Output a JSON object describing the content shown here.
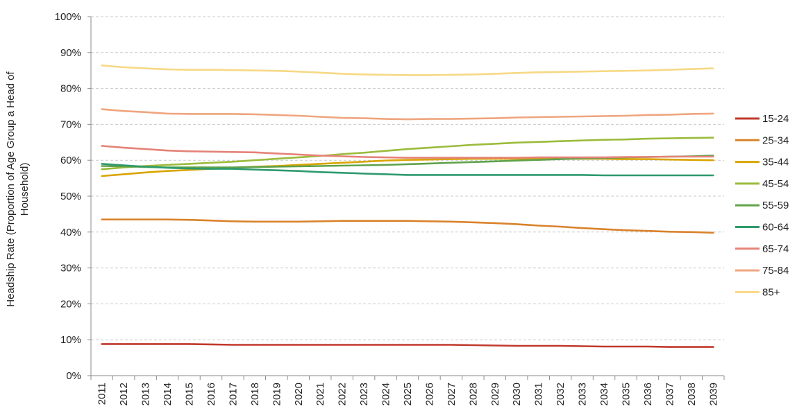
{
  "chart_data": {
    "type": "line",
    "ylabel": [
      "Headship Rate (Proportion of Age Group a Head of",
      "Household)"
    ],
    "ylim": [
      0,
      100
    ],
    "yticks": [
      "0%",
      "10%",
      "20%",
      "30%",
      "40%",
      "50%",
      "60%",
      "70%",
      "80%",
      "90%",
      "100%"
    ],
    "grid": true,
    "legend_position": "right",
    "x": [
      "2011",
      "2012",
      "2013",
      "2014",
      "2015",
      "2016",
      "2017",
      "2018",
      "2019",
      "2020",
      "2021",
      "2022",
      "2023",
      "2024",
      "2025",
      "2026",
      "2027",
      "2028",
      "2029",
      "2030",
      "2031",
      "2032",
      "2033",
      "2034",
      "2035",
      "2036",
      "2037",
      "2038",
      "2039"
    ],
    "series": [
      {
        "name": "15-24",
        "color": "#c0392b",
        "values": [
          8.8,
          8.8,
          8.8,
          8.8,
          8.8,
          8.7,
          8.6,
          8.6,
          8.6,
          8.6,
          8.6,
          8.6,
          8.6,
          8.6,
          8.6,
          8.6,
          8.6,
          8.5,
          8.4,
          8.3,
          8.3,
          8.3,
          8.2,
          8.1,
          8.1,
          8.1,
          8.0,
          8.0,
          8.0
        ]
      },
      {
        "name": "25-34",
        "color": "#d9822b",
        "values": [
          43.5,
          43.5,
          43.5,
          43.5,
          43.4,
          43.2,
          43.0,
          42.9,
          42.9,
          42.9,
          43.0,
          43.1,
          43.1,
          43.1,
          43.1,
          43.0,
          42.9,
          42.7,
          42.5,
          42.2,
          41.8,
          41.5,
          41.1,
          40.8,
          40.5,
          40.3,
          40.1,
          40.0,
          39.8
        ]
      },
      {
        "name": "35-44",
        "color": "#d9a400",
        "values": [
          55.6,
          56.1,
          56.6,
          57.0,
          57.3,
          57.6,
          57.9,
          58.2,
          58.4,
          58.7,
          59.0,
          59.3,
          59.6,
          59.9,
          60.1,
          60.2,
          60.3,
          60.4,
          60.4,
          60.4,
          60.4,
          60.4,
          60.4,
          60.4,
          60.3,
          60.3,
          60.2,
          60.1,
          60.0
        ]
      },
      {
        "name": "45-54",
        "color": "#9bbb3b",
        "values": [
          57.5,
          58.0,
          58.4,
          58.7,
          59.0,
          59.3,
          59.6,
          60.0,
          60.4,
          60.8,
          61.2,
          61.7,
          62.1,
          62.6,
          63.1,
          63.5,
          63.9,
          64.3,
          64.6,
          64.9,
          65.1,
          65.3,
          65.5,
          65.7,
          65.8,
          66.0,
          66.1,
          66.2,
          66.3
        ]
      },
      {
        "name": "55-59",
        "color": "#5fa24a",
        "values": [
          58.4,
          58.3,
          58.1,
          58.0,
          58.0,
          58.0,
          58.0,
          58.1,
          58.2,
          58.3,
          58.4,
          58.5,
          58.6,
          58.7,
          58.9,
          59.1,
          59.3,
          59.5,
          59.7,
          59.9,
          60.1,
          60.3,
          60.5,
          60.6,
          60.8,
          60.9,
          61.0,
          61.1,
          61.3
        ]
      },
      {
        "name": "60-64",
        "color": "#2e9a6d",
        "values": [
          59.0,
          58.6,
          58.2,
          57.9,
          57.7,
          57.6,
          57.6,
          57.4,
          57.2,
          57.0,
          56.7,
          56.5,
          56.3,
          56.1,
          55.9,
          55.9,
          55.9,
          55.9,
          55.9,
          55.9,
          55.9,
          55.9,
          55.9,
          55.8,
          55.8,
          55.8,
          55.8,
          55.8,
          55.8
        ]
      },
      {
        "name": "65-74",
        "color": "#e58277",
        "values": [
          64.0,
          63.5,
          63.1,
          62.7,
          62.5,
          62.4,
          62.3,
          62.2,
          61.9,
          61.6,
          61.3,
          61.1,
          60.9,
          60.8,
          60.7,
          60.7,
          60.7,
          60.7,
          60.7,
          60.7,
          60.8,
          60.8,
          60.8,
          60.8,
          60.9,
          60.9,
          61.0,
          61.0,
          61.0
        ]
      },
      {
        "name": "75-84",
        "color": "#efa57e",
        "values": [
          74.2,
          73.7,
          73.4,
          73.0,
          72.9,
          72.9,
          72.9,
          72.8,
          72.6,
          72.4,
          72.1,
          71.8,
          71.7,
          71.5,
          71.4,
          71.5,
          71.5,
          71.6,
          71.7,
          71.9,
          72.0,
          72.1,
          72.2,
          72.3,
          72.4,
          72.6,
          72.7,
          72.9,
          73.0
        ]
      },
      {
        "name": "85+",
        "color": "#f7d884",
        "values": [
          86.4,
          85.9,
          85.6,
          85.3,
          85.2,
          85.2,
          85.1,
          85.0,
          84.9,
          84.7,
          84.4,
          84.1,
          83.9,
          83.8,
          83.7,
          83.7,
          83.8,
          83.9,
          84.1,
          84.3,
          84.5,
          84.6,
          84.7,
          84.8,
          84.9,
          85.0,
          85.2,
          85.4,
          85.6
        ]
      }
    ]
  }
}
